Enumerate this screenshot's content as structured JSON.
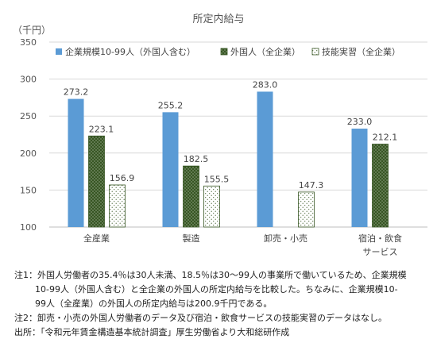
{
  "chart_data": {
    "type": "bar",
    "title": "所定内給与",
    "unit_label": "（千円）",
    "ylim": [
      100,
      350
    ],
    "yticks": [
      100,
      150,
      200,
      250,
      300,
      350
    ],
    "grid": true,
    "legend_position": "top",
    "categories": [
      "全産業",
      "製造",
      "卸売・小売",
      "宿泊・飲食\nサービス"
    ],
    "series": [
      {
        "name": "企業規模10-99人（外国人含む）",
        "color": "#5b9bd5",
        "pattern": "solid",
        "values": [
          273.2,
          255.2,
          283.0,
          233.0
        ]
      },
      {
        "name": "外国人（全企業）",
        "color": "#375623",
        "pattern": "dots-on-dark",
        "values": [
          223.1,
          182.5,
          null,
          212.1
        ]
      },
      {
        "name": "技能実習（全企業）",
        "color": "#ffffff",
        "pattern": "dots-on-light",
        "values": [
          156.9,
          155.5,
          147.3,
          null
        ]
      }
    ],
    "value_labels": [
      [
        "273.2",
        "255.2",
        "283.0",
        "233.0"
      ],
      [
        "223.1",
        "182.5",
        "",
        "212.1"
      ],
      [
        "156.9",
        "155.5",
        "147.3",
        ""
      ]
    ]
  },
  "notes": {
    "note1_line1": "注1：外国人労働者の35.4％は30人未満、18.5％は30～99人の事業所で働いているため、企業規模",
    "note1_line2": "10-99人（外国人含む）と全企業の外国人の所定内給与を比較した。ちなみに、企業規模10-",
    "note1_line3": "99人（全産業）の外国人の所定内給与は200.9千円である。",
    "note2": "注2：卸売・小売の外国人労働者のデータ及び宿泊・飲食サービスの技能実習のデータはなし。",
    "source": "出所：「令和元年賃金構造基本統計調査」厚生労働省より大和総研作成"
  }
}
